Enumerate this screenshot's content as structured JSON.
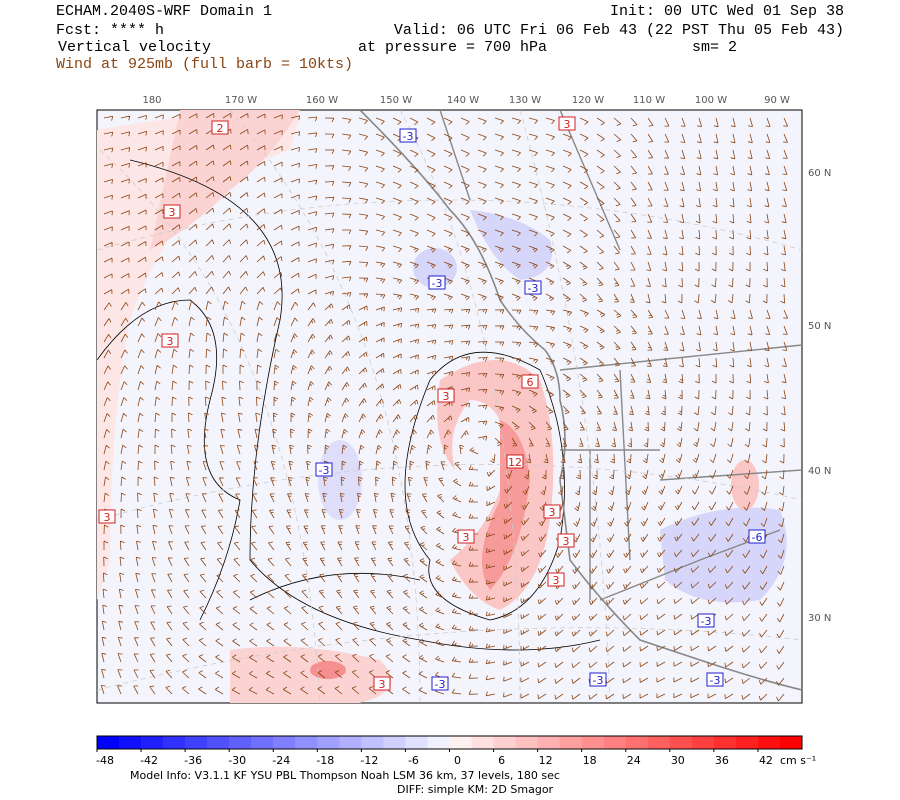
{
  "header": {
    "left": [
      "ECHAM.2040S-WRF Domain 1",
      "Fcst: **** h",
      "Vertical velocity",
      "Wind at 925mb (full barb = 10kts)"
    ],
    "right": [
      "Init: 00 UTC Wed 01 Sep 38",
      "Valid: 06 UTC Fri 06 Feb 43 (22 PST Thu 05 Feb 43)",
      "at pressure =  700 hPa",
      "sm= 2"
    ]
  },
  "map": {
    "lon_labels": [
      "180",
      "170 W",
      "160 W",
      "150 W",
      "140 W",
      "130 W",
      "120 W",
      "110 W",
      "100 W",
      "90 W"
    ],
    "lat_labels": [
      "60 N",
      "50 N",
      "40 N",
      "30 N"
    ],
    "contour_labels": [
      "2",
      "-3",
      "3",
      "3",
      "-3",
      "-3",
      "3",
      "3",
      "6",
      "12",
      "-3",
      "3",
      "3",
      "3",
      "3",
      "3",
      "-6",
      "-3",
      "3",
      "-3",
      "-3",
      "-3"
    ]
  },
  "colorbar": {
    "lim": [
      -48,
      48
    ],
    "ticks": [
      -48,
      -42,
      -36,
      -30,
      -24,
      -18,
      -12,
      -6,
      0,
      6,
      12,
      18,
      24,
      30,
      36,
      42
    ],
    "unit": "cm s⁻¹",
    "colors": [
      "#0000ff",
      "#1010ff",
      "#2020ff",
      "#3030ff",
      "#4040ff",
      "#5050ff",
      "#6060ff",
      "#7070ff",
      "#8080ff",
      "#9090ff",
      "#a0a0ff",
      "#b0b0ff",
      "#c0c0ff",
      "#d0d0ff",
      "#e0e0ff",
      "#f0f0ff",
      "#fff0f0",
      "#ffe0e0",
      "#ffd0d0",
      "#ffc0c0",
      "#ffb0b0",
      "#ffa0a0",
      "#ff9090",
      "#ff8080",
      "#ff7070",
      "#ff6060",
      "#ff5050",
      "#ff4040",
      "#ff3030",
      "#ff2020",
      "#ff1010",
      "#ff0000"
    ]
  },
  "footer": [
    "Model Info: V3.1.1   KF      YSU PBL   Thompson     Noah LSM  36 km,    37 levels,  180 sec",
    "DIFF: simple KM: 2D Smagor"
  ]
}
